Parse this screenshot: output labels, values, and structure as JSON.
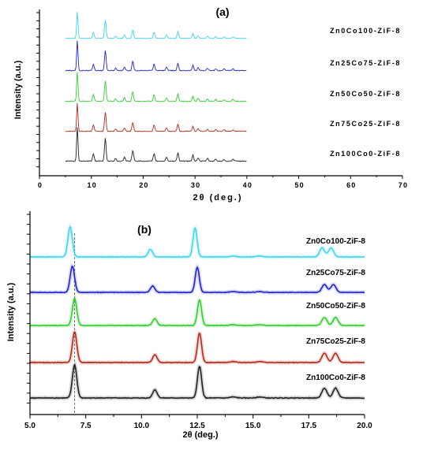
{
  "chart_data": [
    {
      "type": "line",
      "panel_label": "(a)",
      "xlabel": "2θ (deg.)",
      "ylabel": "Intensity (a.u.)",
      "xlim": [
        0,
        70
      ],
      "xticks": [
        "0",
        "10",
        "20",
        "30",
        "40",
        "50",
        "60",
        "70"
      ],
      "series": [
        {
          "name": "Zn0Co100-ZiF-8",
          "color": "#3fd5f0"
        },
        {
          "name": "Zn25Co75-ZiF-8",
          "color": "#2323c8"
        },
        {
          "name": "Zn50Co50-ZiF-8",
          "color": "#33cc33"
        },
        {
          "name": "Zn75Co25-ZiF-8",
          "color": "#b32a1a"
        },
        {
          "name": "Zn100Co0-ZiF-8",
          "color": "#222222"
        }
      ]
    },
    {
      "type": "line",
      "panel_label": "(b)",
      "xlabel": "2θ (deg.)",
      "ylabel": "Intensity (a.u.)",
      "xlim": [
        5.0,
        20.0
      ],
      "xticks": [
        "5.0",
        "7.5",
        "10.0",
        "12.5",
        "15.0",
        "17.5",
        "20.0"
      ],
      "reference_line_x": 7.0,
      "series": [
        {
          "name": "Zn0Co100-ZiF-8",
          "color": "#3fd5f0",
          "peaks_2theta": [
            6.8,
            10.4,
            12.4,
            18.1,
            18.5
          ]
        },
        {
          "name": "Zn25Co75-ZiF-8",
          "color": "#2323c8",
          "peaks_2theta": [
            6.9,
            10.5,
            12.5,
            18.2,
            18.6
          ]
        },
        {
          "name": "Zn50Co50-ZiF-8",
          "color": "#33cc33",
          "peaks_2theta": [
            7.0,
            10.6,
            12.6,
            18.2,
            18.7
          ]
        },
        {
          "name": "Zn75Co25-ZiF-8",
          "color": "#b32a1a",
          "peaks_2theta": [
            7.0,
            10.6,
            12.6,
            18.2,
            18.7
          ]
        },
        {
          "name": "Zn100Co0-ZiF-8",
          "color": "#222222",
          "peaks_2theta": [
            7.0,
            10.6,
            12.6,
            18.2,
            18.7
          ]
        }
      ]
    }
  ]
}
